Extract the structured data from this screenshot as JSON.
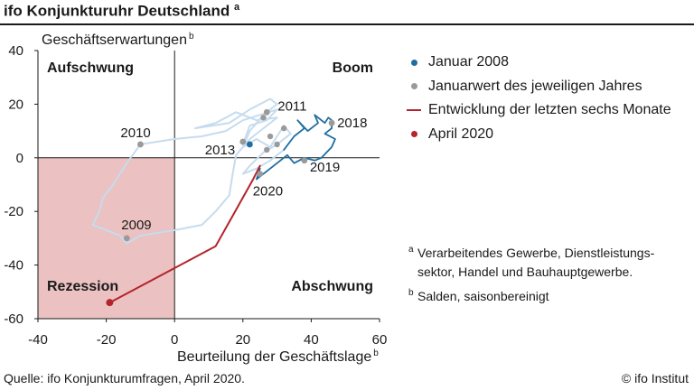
{
  "title": "ifo Konjunkturuhr Deutschland",
  "title_note": "a",
  "source": "Quelle: ifo Konjunkturumfragen, April 2020.",
  "copyright": "© ifo Institut",
  "colors": {
    "path_dark": "#1f6ea0",
    "path_light": "#c6dcee",
    "year_dot": "#9a9a9a",
    "recent": "#b3242b",
    "recession_fill": "#ebc1c1",
    "axis": "#1a1a1a"
  },
  "legend": [
    {
      "label": "Januar 2008",
      "kind": "dot",
      "color": "#1f6ea0"
    },
    {
      "label": "Januarwert des jeweiligen Jahres",
      "kind": "dot",
      "color": "#9a9a9a"
    },
    {
      "label": "Entwicklung der letzten sechs Monate",
      "kind": "line",
      "color": "#b3242b"
    },
    {
      "label": "April 2020",
      "kind": "dot",
      "color": "#b3242b"
    }
  ],
  "notes": [
    {
      "mark": "a",
      "text": "Verarbeitendes Gewerbe,  Dienstleistungs-\nsektor, Handel und Bauhauptgewerbe."
    },
    {
      "mark": "b",
      "text": "Salden, saisonbereinigt"
    }
  ],
  "chart_data": {
    "type": "line",
    "xlabel": "Beurteilung der Geschäftslage",
    "xlabel_note": "b",
    "ylabel": "Geschäftserwartungen",
    "ylabel_note": "b",
    "xlim": [
      -40,
      60
    ],
    "ylim": [
      -60,
      40
    ],
    "xticks": [
      -40,
      -20,
      0,
      20,
      40,
      60
    ],
    "yticks": [
      40,
      20,
      0,
      -20,
      -40,
      -60
    ],
    "quadrants": {
      "top_left": "Aufschwung",
      "top_right": "Boom",
      "bottom_left": "Rezession",
      "bottom_right": "Abschwung"
    },
    "series": [
      {
        "role": "history_light",
        "points": [
          [
            20,
            5
          ],
          [
            22,
            12
          ],
          [
            27,
            14
          ],
          [
            30,
            18
          ],
          [
            20,
            14
          ],
          [
            15,
            10
          ],
          [
            8,
            8
          ],
          [
            0,
            7
          ],
          [
            -10,
            5
          ],
          [
            -14,
            -2
          ],
          [
            -18,
            -10
          ],
          [
            -21,
            -15
          ],
          [
            -22,
            -20
          ],
          [
            -24,
            -25
          ],
          [
            -16,
            -29
          ],
          [
            -14,
            -32
          ],
          [
            -10,
            -29
          ],
          [
            0,
            -27
          ],
          [
            8,
            -25
          ],
          [
            12,
            -20
          ],
          [
            16,
            -14
          ],
          [
            17,
            -6
          ],
          [
            18,
            1
          ],
          [
            22,
            7
          ],
          [
            26,
            11
          ],
          [
            30,
            15
          ],
          [
            24,
            14
          ],
          [
            18,
            17
          ],
          [
            12,
            13
          ],
          [
            6,
            11
          ],
          [
            16,
            13
          ],
          [
            22,
            18
          ],
          [
            28,
            22
          ],
          [
            30,
            20
          ],
          [
            26,
            16
          ],
          [
            22,
            10
          ],
          [
            20,
            4
          ],
          [
            24,
            7
          ],
          [
            28,
            4
          ],
          [
            30,
            8
          ],
          [
            32,
            12
          ],
          [
            34,
            9
          ],
          [
            30,
            5
          ],
          [
            26,
            2
          ],
          [
            22,
            -3
          ],
          [
            20,
            -6
          ],
          [
            24,
            -4
          ],
          [
            28,
            -1
          ],
          [
            32,
            3
          ]
        ]
      },
      {
        "role": "history_dark",
        "points": [
          [
            32,
            3
          ],
          [
            35,
            8
          ],
          [
            38,
            11
          ],
          [
            36,
            14
          ],
          [
            39,
            10
          ],
          [
            42,
            13
          ],
          [
            41,
            16
          ],
          [
            44,
            13
          ],
          [
            45,
            15
          ],
          [
            46,
            14
          ],
          [
            46,
            11
          ],
          [
            44,
            9
          ],
          [
            47,
            7
          ],
          [
            46,
            4
          ],
          [
            43,
            0
          ],
          [
            41,
            -1
          ],
          [
            38,
            0
          ],
          [
            35,
            -2
          ],
          [
            33,
            1
          ],
          [
            30,
            -2
          ],
          [
            28,
            -4
          ],
          [
            26,
            -6
          ],
          [
            24,
            -8
          ],
          [
            25,
            -4
          ]
        ]
      },
      {
        "role": "last_six_months",
        "points": [
          [
            25,
            -3
          ],
          [
            23,
            -8
          ],
          [
            12,
            -33
          ],
          [
            -19,
            -54
          ]
        ]
      }
    ],
    "january_2008": [
      22,
      5
    ],
    "april_2020": [
      -19,
      -54
    ],
    "year_points": [
      {
        "label": "2010",
        "x": -10,
        "y": 5
      },
      {
        "label": "2009",
        "x": -14,
        "y": -30
      },
      {
        "label": "2011",
        "x": 27,
        "y": 17
      },
      {
        "label": "2013",
        "x": 20,
        "y": 6
      },
      {
        "label": "2018",
        "x": 46,
        "y": 13
      },
      {
        "label": "2019",
        "x": 38,
        "y": -1
      },
      {
        "label": "2020",
        "x": 25,
        "y": -6
      }
    ],
    "extra_year_points": [
      [
        26,
        15
      ],
      [
        28,
        8
      ],
      [
        32,
        11
      ],
      [
        30,
        5
      ],
      [
        27,
        3
      ]
    ]
  }
}
